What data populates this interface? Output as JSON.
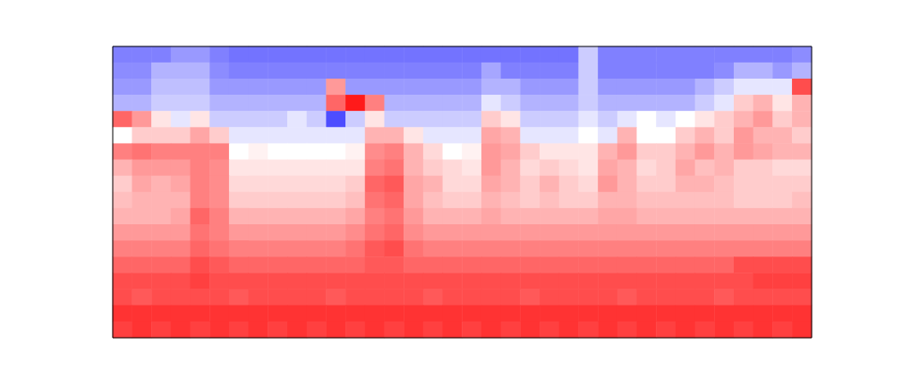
{
  "chart_data": {
    "type": "heatmap",
    "tick_labels": false,
    "zlim": [
      -1,
      1
    ],
    "z": [
      [
        -0.5,
        -0.5,
        -0.5,
        -0.4,
        -0.4,
        -0.5,
        -0.55,
        -0.55,
        -0.55,
        -0.55,
        -0.55,
        -0.55,
        -0.55,
        -0.55,
        -0.55,
        -0.55,
        -0.55,
        -0.55,
        -0.55,
        -0.55,
        -0.55,
        -0.55,
        -0.55,
        -0.55,
        -0.2,
        -0.5,
        -0.5,
        -0.5,
        -0.5,
        -0.5,
        -0.5,
        -0.5,
        -0.5,
        -0.5,
        -0.5,
        -0.45
      ],
      [
        -0.45,
        -0.45,
        -0.3,
        -0.3,
        -0.3,
        -0.45,
        -0.5,
        -0.5,
        -0.5,
        -0.5,
        -0.5,
        -0.5,
        -0.5,
        -0.5,
        -0.5,
        -0.5,
        -0.5,
        -0.5,
        -0.5,
        -0.35,
        -0.5,
        -0.5,
        -0.5,
        -0.5,
        -0.2,
        -0.5,
        -0.5,
        -0.5,
        -0.5,
        -0.5,
        -0.5,
        -0.45,
        -0.3,
        -0.3,
        -0.4,
        -0.3
      ],
      [
        -0.4,
        -0.4,
        -0.25,
        -0.25,
        -0.25,
        -0.4,
        -0.4,
        -0.4,
        -0.4,
        -0.4,
        -0.4,
        0.4,
        -0.4,
        -0.4,
        -0.4,
        -0.4,
        -0.4,
        -0.4,
        -0.4,
        -0.3,
        -0.3,
        -0.4,
        -0.4,
        -0.4,
        -0.2,
        -0.4,
        -0.4,
        -0.4,
        -0.4,
        -0.4,
        -0.3,
        -0.2,
        -0.1,
        -0.1,
        -0.1,
        0.7
      ],
      [
        -0.3,
        -0.3,
        -0.2,
        -0.2,
        -0.2,
        -0.3,
        -0.3,
        -0.3,
        -0.3,
        -0.3,
        -0.3,
        0.6,
        0.9,
        0.5,
        -0.3,
        -0.3,
        -0.3,
        -0.3,
        -0.3,
        -0.1,
        -0.2,
        -0.3,
        -0.3,
        -0.3,
        -0.2,
        -0.3,
        -0.3,
        -0.3,
        -0.3,
        -0.3,
        -0.2,
        -0.1,
        0.2,
        0.3,
        0.1,
        0.3
      ],
      [
        0.6,
        0.4,
        0.1,
        -0.1,
        0.1,
        -0.2,
        -0.2,
        -0.2,
        -0.2,
        -0.1,
        -0.2,
        -0.7,
        -0.2,
        0.1,
        -0.2,
        -0.2,
        -0.2,
        -0.2,
        -0.2,
        0.2,
        0.1,
        -0.2,
        -0.2,
        -0.2,
        -0.1,
        -0.2,
        -0.1,
        0.0,
        -0.1,
        0.0,
        0.1,
        0.2,
        0.3,
        0.4,
        0.2,
        0.3
      ],
      [
        0.0,
        0.2,
        0.2,
        0.2,
        0.35,
        0.2,
        -0.1,
        -0.1,
        -0.1,
        -0.1,
        -0.1,
        -0.1,
        -0.1,
        0.3,
        0.3,
        0.1,
        -0.1,
        -0.1,
        -0.1,
        0.35,
        0.3,
        -0.1,
        -0.1,
        -0.1,
        0.0,
        -0.1,
        0.3,
        0.0,
        0.0,
        0.2,
        0.3,
        0.2,
        0.4,
        0.3,
        0.3,
        0.2
      ],
      [
        0.5,
        0.55,
        0.5,
        0.5,
        0.5,
        0.5,
        0.0,
        0.05,
        0.0,
        0.0,
        0.0,
        0.0,
        0.05,
        0.45,
        0.5,
        0.3,
        0.15,
        0.0,
        0.05,
        0.4,
        0.35,
        0.2,
        0.1,
        0.1,
        0.1,
        0.3,
        0.4,
        0.2,
        0.2,
        0.3,
        0.4,
        0.3,
        0.4,
        0.35,
        0.3,
        0.3
      ],
      [
        0.3,
        0.4,
        0.4,
        0.4,
        0.5,
        0.45,
        0.1,
        0.1,
        0.1,
        0.1,
        0.1,
        0.1,
        0.1,
        0.5,
        0.55,
        0.3,
        0.2,
        0.15,
        0.1,
        0.4,
        0.3,
        0.15,
        0.2,
        0.15,
        0.1,
        0.35,
        0.3,
        0.15,
        0.2,
        0.35,
        0.25,
        0.3,
        0.2,
        0.2,
        0.15,
        0.15
      ],
      [
        0.2,
        0.35,
        0.3,
        0.35,
        0.5,
        0.45,
        0.15,
        0.15,
        0.15,
        0.15,
        0.15,
        0.15,
        0.2,
        0.6,
        0.65,
        0.35,
        0.3,
        0.15,
        0.15,
        0.35,
        0.3,
        0.2,
        0.3,
        0.2,
        0.15,
        0.4,
        0.3,
        0.2,
        0.2,
        0.3,
        0.3,
        0.25,
        0.2,
        0.2,
        0.2,
        0.2
      ],
      [
        0.25,
        0.3,
        0.3,
        0.3,
        0.5,
        0.45,
        0.2,
        0.2,
        0.2,
        0.2,
        0.2,
        0.2,
        0.25,
        0.55,
        0.6,
        0.35,
        0.25,
        0.2,
        0.2,
        0.3,
        0.25,
        0.2,
        0.25,
        0.2,
        0.2,
        0.3,
        0.3,
        0.25,
        0.25,
        0.25,
        0.25,
        0.25,
        0.2,
        0.2,
        0.2,
        0.25
      ],
      [
        0.3,
        0.3,
        0.3,
        0.35,
        0.6,
        0.5,
        0.3,
        0.3,
        0.3,
        0.3,
        0.3,
        0.3,
        0.35,
        0.5,
        0.55,
        0.4,
        0.3,
        0.3,
        0.3,
        0.35,
        0.3,
        0.3,
        0.3,
        0.3,
        0.3,
        0.35,
        0.35,
        0.3,
        0.3,
        0.3,
        0.3,
        0.3,
        0.3,
        0.3,
        0.3,
        0.3
      ],
      [
        0.4,
        0.4,
        0.4,
        0.4,
        0.55,
        0.5,
        0.4,
        0.4,
        0.4,
        0.4,
        0.4,
        0.4,
        0.45,
        0.55,
        0.6,
        0.45,
        0.4,
        0.4,
        0.4,
        0.4,
        0.4,
        0.4,
        0.4,
        0.4,
        0.4,
        0.4,
        0.4,
        0.4,
        0.4,
        0.4,
        0.4,
        0.4,
        0.4,
        0.4,
        0.4,
        0.4
      ],
      [
        0.5,
        0.5,
        0.5,
        0.5,
        0.6,
        0.55,
        0.5,
        0.5,
        0.5,
        0.5,
        0.5,
        0.5,
        0.55,
        0.65,
        0.7,
        0.55,
        0.5,
        0.5,
        0.5,
        0.5,
        0.5,
        0.5,
        0.5,
        0.5,
        0.5,
        0.5,
        0.5,
        0.5,
        0.5,
        0.5,
        0.5,
        0.5,
        0.5,
        0.5,
        0.5,
        0.5
      ],
      [
        0.6,
        0.6,
        0.6,
        0.6,
        0.7,
        0.65,
        0.6,
        0.6,
        0.6,
        0.6,
        0.6,
        0.6,
        0.6,
        0.65,
        0.65,
        0.6,
        0.6,
        0.6,
        0.6,
        0.6,
        0.6,
        0.6,
        0.6,
        0.6,
        0.6,
        0.6,
        0.6,
        0.6,
        0.6,
        0.6,
        0.6,
        0.6,
        0.7,
        0.7,
        0.7,
        0.7
      ],
      [
        0.7,
        0.7,
        0.7,
        0.7,
        0.75,
        0.7,
        0.7,
        0.7,
        0.7,
        0.7,
        0.7,
        0.7,
        0.7,
        0.7,
        0.7,
        0.7,
        0.7,
        0.7,
        0.7,
        0.7,
        0.7,
        0.7,
        0.7,
        0.7,
        0.7,
        0.7,
        0.7,
        0.7,
        0.7,
        0.7,
        0.7,
        0.7,
        0.7,
        0.75,
        0.75,
        0.75
      ],
      [
        0.7,
        0.65,
        0.7,
        0.7,
        0.7,
        0.7,
        0.65,
        0.7,
        0.7,
        0.7,
        0.7,
        0.65,
        0.7,
        0.7,
        0.7,
        0.7,
        0.65,
        0.7,
        0.7,
        0.7,
        0.7,
        0.65,
        0.7,
        0.7,
        0.7,
        0.7,
        0.65,
        0.7,
        0.7,
        0.7,
        0.7,
        0.65,
        0.7,
        0.7,
        0.7,
        0.7
      ],
      [
        0.8,
        0.8,
        0.8,
        0.8,
        0.8,
        0.8,
        0.8,
        0.8,
        0.8,
        0.8,
        0.8,
        0.8,
        0.8,
        0.8,
        0.8,
        0.8,
        0.8,
        0.8,
        0.8,
        0.8,
        0.8,
        0.8,
        0.8,
        0.8,
        0.8,
        0.8,
        0.8,
        0.8,
        0.8,
        0.8,
        0.8,
        0.8,
        0.8,
        0.8,
        0.8,
        0.8
      ],
      [
        0.75,
        0.8,
        0.75,
        0.8,
        0.75,
        0.8,
        0.75,
        0.8,
        0.75,
        0.8,
        0.75,
        0.8,
        0.75,
        0.8,
        0.75,
        0.8,
        0.75,
        0.8,
        0.75,
        0.8,
        0.75,
        0.8,
        0.75,
        0.8,
        0.75,
        0.8,
        0.75,
        0.8,
        0.75,
        0.8,
        0.75,
        0.8,
        0.75,
        0.8,
        0.75,
        0.8
      ]
    ]
  }
}
